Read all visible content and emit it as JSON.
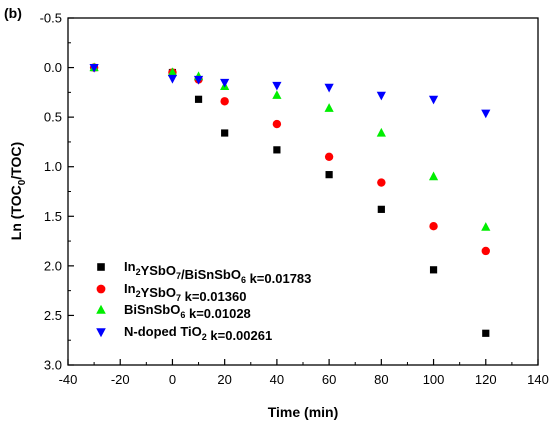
{
  "panel_label": "(b)",
  "chart_data": {
    "type": "scatter",
    "xlabel": "Time (min)",
    "ylabel": "Ln (TOC",
    "ylabel_sub": "0",
    "ylabel_mid": "/TOC)",
    "xlim": [
      -40,
      140
    ],
    "ylim": [
      -0.5,
      3.0
    ],
    "y_inverted": true,
    "x_ticks": [
      -40,
      -20,
      0,
      20,
      40,
      60,
      80,
      100,
      120,
      140
    ],
    "y_ticks": [
      -0.5,
      0.0,
      0.5,
      1.0,
      1.5,
      2.0,
      2.5,
      3.0
    ],
    "x_tick_labels": [
      "-40",
      "-20",
      "0",
      "20",
      "40",
      "60",
      "80",
      "100",
      "120",
      "140"
    ],
    "y_tick_labels": [
      "-0.5",
      "0.0",
      "0.5",
      "1.0",
      "1.5",
      "2.0",
      "2.5",
      "3.0"
    ],
    "grid": false,
    "legend_position": "bottom-left",
    "series": [
      {
        "legend": [
          {
            "t": "In",
            "s": ""
          },
          {
            "t": "2",
            "s": "sub"
          },
          {
            "t": "YSbO",
            "s": ""
          },
          {
            "t": "7",
            "s": "sub"
          },
          {
            "t": "/BiSnSbO",
            "s": ""
          },
          {
            "t": "6",
            "s": "sub"
          },
          {
            "t": " k=0.01783",
            "s": ""
          }
        ],
        "marker": "square",
        "color": "#000000",
        "x": [
          -30,
          0,
          10,
          20,
          40,
          60,
          80,
          100,
          120
        ],
        "y": [
          0.0,
          0.05,
          0.32,
          0.66,
          0.83,
          1.08,
          1.43,
          2.04,
          2.68
        ]
      },
      {
        "legend": [
          {
            "t": "In",
            "s": ""
          },
          {
            "t": "2",
            "s": "sub"
          },
          {
            "t": "YSbO",
            "s": ""
          },
          {
            "t": "7",
            "s": "sub"
          },
          {
            "t": " k=0.01360",
            "s": ""
          }
        ],
        "marker": "circle",
        "color": "#ff0000",
        "x": [
          -30,
          0,
          10,
          20,
          40,
          60,
          80,
          100,
          120
        ],
        "y": [
          0.0,
          0.05,
          0.12,
          0.34,
          0.57,
          0.9,
          1.16,
          1.6,
          1.85
        ]
      },
      {
        "legend": [
          {
            "t": "BiSnSbO",
            "s": ""
          },
          {
            "t": "6",
            "s": "sub"
          },
          {
            "t": " k=0.01028",
            "s": ""
          }
        ],
        "marker": "triangle-up",
        "color": "#00ee00",
        "x": [
          -30,
          0,
          10,
          20,
          40,
          60,
          80,
          100,
          120
        ],
        "y": [
          0.0,
          0.05,
          0.09,
          0.19,
          0.28,
          0.41,
          0.66,
          1.1,
          1.61
        ]
      },
      {
        "legend": [
          {
            "t": "N-doped TiO",
            "s": ""
          },
          {
            "t": "2",
            "s": "sub"
          },
          {
            "t": " k=0.00261",
            "s": ""
          }
        ],
        "marker": "triangle-down",
        "color": "#0000ff",
        "x": [
          -30,
          0,
          10,
          20,
          40,
          60,
          80,
          100,
          120
        ],
        "y": [
          0.0,
          0.11,
          0.12,
          0.15,
          0.18,
          0.2,
          0.28,
          0.32,
          0.46
        ]
      }
    ]
  }
}
